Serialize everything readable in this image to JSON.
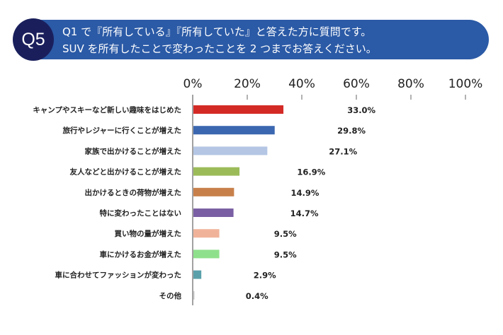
{
  "header": {
    "badge": "Q5",
    "line1": "Q1 で『所有している』『所有していた』と答えた方に質問です。",
    "line2": "SUV を所有したことで変わったことを 2 つまでお答えください。",
    "banner_color": "#2b5aa6",
    "badge_color": "#1a1f5c"
  },
  "chart_data": {
    "type": "bar",
    "orientation": "horizontal",
    "categories": [
      "キャンプやスキーなど新しい趣味をはじめた",
      "旅行やレジャーに行くことが増えた",
      "家族で出かけることが増えた",
      "友人などと出かけることが増えた",
      "出かけるときの荷物が増えた",
      "特に変わったことはない",
      "買い物の量が増えた",
      "車にかけるお金が増えた",
      "車に合わせてファッションが変わった",
      "その他"
    ],
    "values": [
      33.0,
      29.8,
      27.1,
      16.9,
      14.9,
      14.7,
      9.5,
      9.5,
      2.9,
      0.4
    ],
    "value_labels": [
      "33.0%",
      "29.8%",
      "27.1%",
      "16.9%",
      "14.9%",
      "14.7%",
      "9.5%",
      "9.5%",
      "2.9%",
      "0.4%"
    ],
    "colors": [
      "#d42a26",
      "#3b67b0",
      "#b4c6e4",
      "#9bbb59",
      "#c8804a",
      "#7a5fa4",
      "#f0b39a",
      "#8fe08c",
      "#5aa0aa",
      "#cccccc"
    ],
    "xlim": [
      0,
      100
    ],
    "ticks": [
      "0%",
      "20%",
      "40%",
      "60%",
      "80%",
      "100%"
    ],
    "tick_values": [
      0,
      20,
      40,
      60,
      80,
      100
    ],
    "grid": false
  }
}
